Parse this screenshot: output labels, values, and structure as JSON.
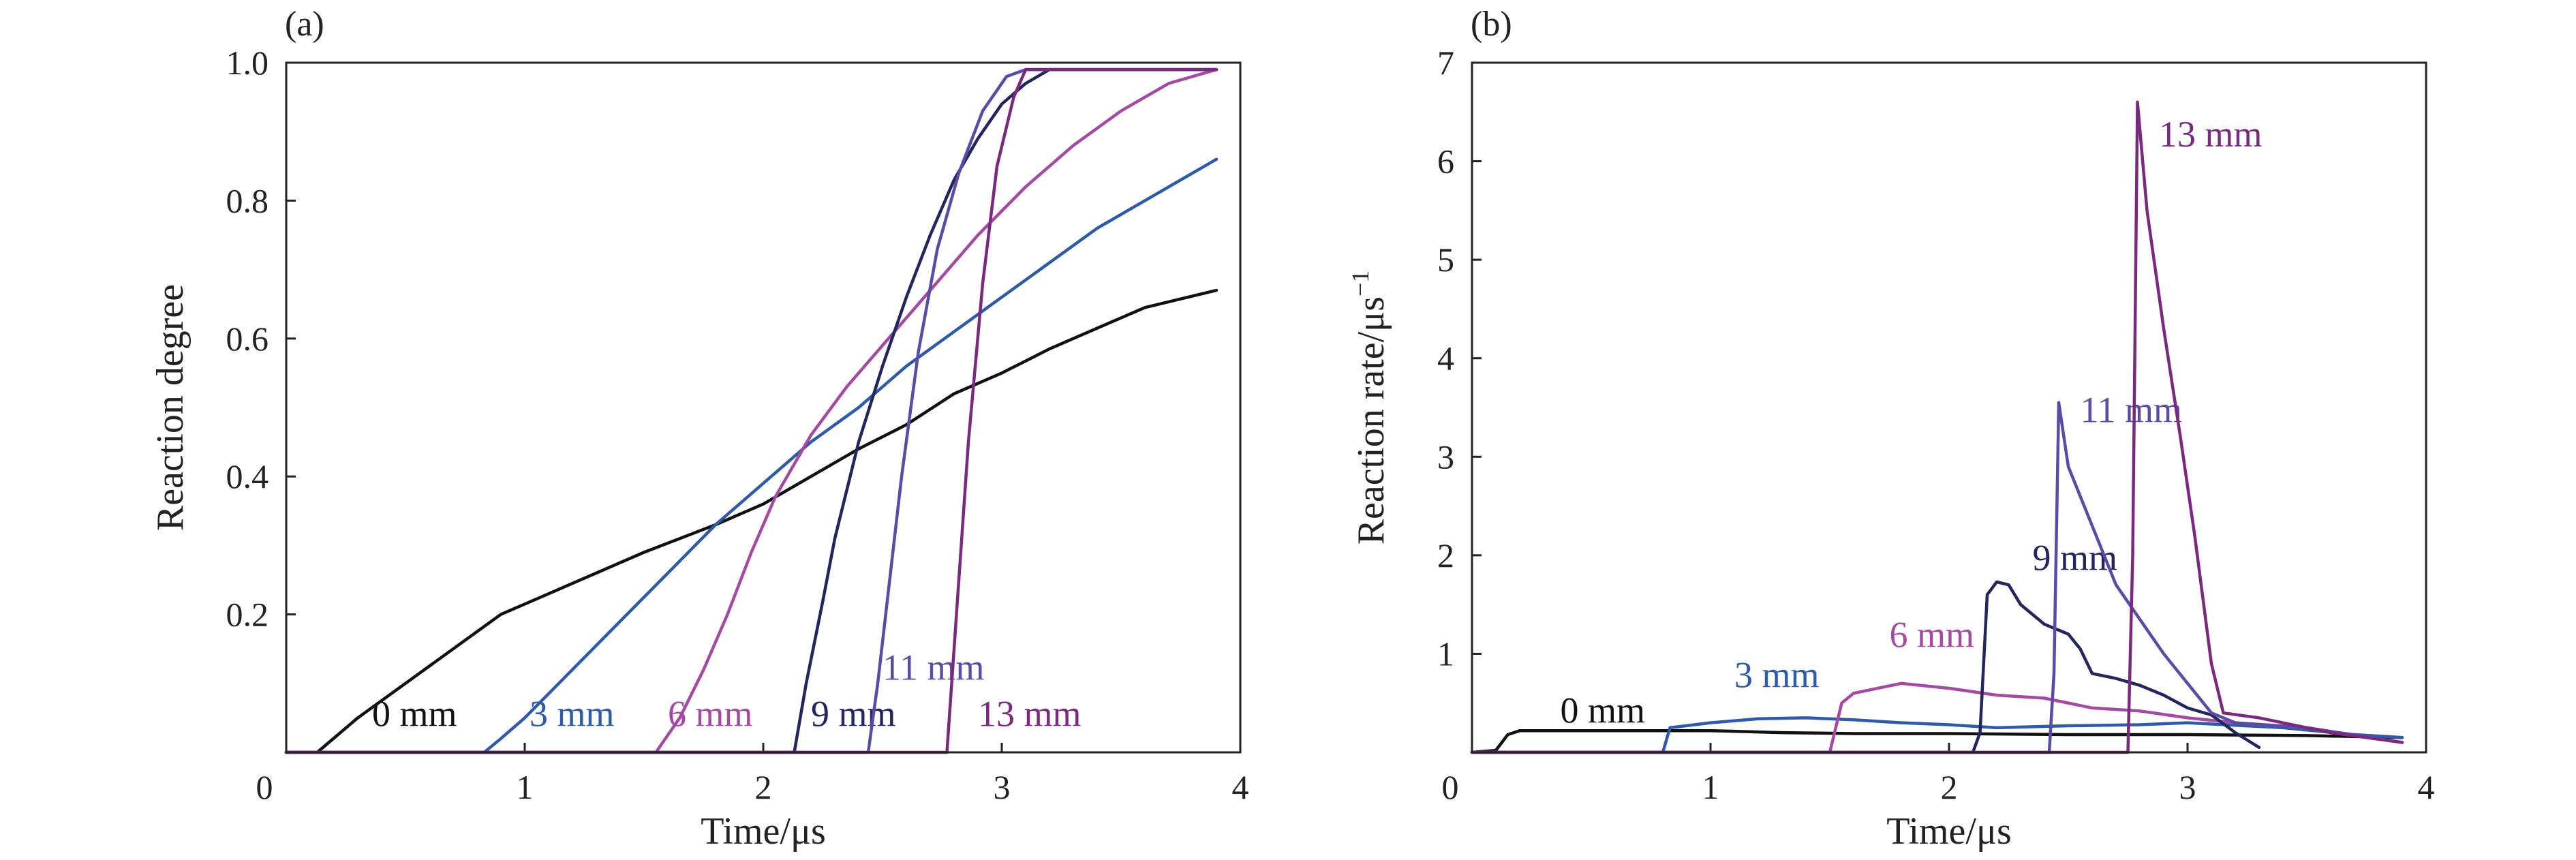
{
  "chart_data": [
    {
      "type": "line",
      "panel_label": "(a)",
      "xlabel": "Time/μs",
      "ylabel": "Reaction degree",
      "xlim": [
        0,
        4
      ],
      "ylim": [
        0,
        1.0
      ],
      "x_ticks": [
        0,
        1,
        2,
        3,
        4
      ],
      "x_tick_labels": [
        "0",
        "1",
        "2",
        "3",
        "4"
      ],
      "y_ticks": [
        0.2,
        0.4,
        0.6,
        0.8,
        1.0
      ],
      "y_tick_labels": [
        "0.2",
        "0.4",
        "0.6",
        "0.8",
        "1.0"
      ],
      "grid": false,
      "legend": "none",
      "series": [
        {
          "name": "0 mm",
          "color": "#111111",
          "label_at": [
            0.36,
            0.038
          ],
          "points": [
            [
              0,
              0
            ],
            [
              0.08,
              0
            ],
            [
              0.13,
              0
            ],
            [
              0.3,
              0.05
            ],
            [
              0.5,
              0.1
            ],
            [
              0.7,
              0.15
            ],
            [
              0.9,
              0.2
            ],
            [
              1.2,
              0.245
            ],
            [
              1.5,
              0.29
            ],
            [
              1.8,
              0.33
            ],
            [
              2.0,
              0.36
            ],
            [
              2.2,
              0.4
            ],
            [
              2.4,
              0.44
            ],
            [
              2.6,
              0.475
            ],
            [
              2.8,
              0.52
            ],
            [
              3.0,
              0.55
            ],
            [
              3.2,
              0.585
            ],
            [
              3.4,
              0.615
            ],
            [
              3.6,
              0.645
            ],
            [
              3.9,
              0.67
            ]
          ]
        },
        {
          "name": "3 mm",
          "color": "#2e5aa8",
          "label_at": [
            1.02,
            0.038
          ],
          "points": [
            [
              0,
              0
            ],
            [
              0.8,
              0
            ],
            [
              0.83,
              0
            ],
            [
              0.9,
              0.02
            ],
            [
              1.0,
              0.05
            ],
            [
              1.2,
              0.12
            ],
            [
              1.4,
              0.19
            ],
            [
              1.6,
              0.26
            ],
            [
              1.8,
              0.33
            ],
            [
              2.0,
              0.39
            ],
            [
              2.2,
              0.45
            ],
            [
              2.4,
              0.5
            ],
            [
              2.6,
              0.56
            ],
            [
              2.8,
              0.61
            ],
            [
              3.0,
              0.66
            ],
            [
              3.2,
              0.71
            ],
            [
              3.4,
              0.76
            ],
            [
              3.6,
              0.8
            ],
            [
              3.9,
              0.86
            ]
          ]
        },
        {
          "name": "6 mm",
          "color": "#a54aa3",
          "label_at": [
            1.6,
            0.038
          ],
          "points": [
            [
              0,
              0
            ],
            [
              1.5,
              0
            ],
            [
              1.55,
              0
            ],
            [
              1.65,
              0.05
            ],
            [
              1.75,
              0.12
            ],
            [
              1.85,
              0.2
            ],
            [
              1.95,
              0.29
            ],
            [
              2.05,
              0.37
            ],
            [
              2.2,
              0.46
            ],
            [
              2.35,
              0.53
            ],
            [
              2.5,
              0.59
            ],
            [
              2.7,
              0.67
            ],
            [
              2.9,
              0.75
            ],
            [
              3.1,
              0.82
            ],
            [
              3.3,
              0.88
            ],
            [
              3.5,
              0.93
            ],
            [
              3.7,
              0.97
            ],
            [
              3.9,
              0.99
            ]
          ]
        },
        {
          "name": "9 mm",
          "color": "#22255e",
          "label_at": [
            2.2,
            0.038
          ],
          "points": [
            [
              0,
              0
            ],
            [
              2.1,
              0
            ],
            [
              2.13,
              0
            ],
            [
              2.18,
              0.1
            ],
            [
              2.25,
              0.22
            ],
            [
              2.3,
              0.31
            ],
            [
              2.4,
              0.45
            ],
            [
              2.5,
              0.56
            ],
            [
              2.6,
              0.66
            ],
            [
              2.7,
              0.75
            ],
            [
              2.8,
              0.83
            ],
            [
              2.9,
              0.89
            ],
            [
              3.0,
              0.94
            ],
            [
              3.1,
              0.97
            ],
            [
              3.2,
              0.99
            ],
            [
              3.3,
              0.99
            ],
            [
              3.9,
              0.99
            ]
          ]
        },
        {
          "name": "11 mm",
          "color": "#5a4ba6",
          "label_at": [
            2.5,
            0.105
          ],
          "points": [
            [
              0,
              0
            ],
            [
              2.42,
              0
            ],
            [
              2.44,
              0
            ],
            [
              2.48,
              0.1
            ],
            [
              2.52,
              0.22
            ],
            [
              2.58,
              0.4
            ],
            [
              2.65,
              0.58
            ],
            [
              2.73,
              0.73
            ],
            [
              2.82,
              0.84
            ],
            [
              2.92,
              0.93
            ],
            [
              3.02,
              0.98
            ],
            [
              3.1,
              0.99
            ],
            [
              3.9,
              0.99
            ]
          ]
        },
        {
          "name": "13 mm",
          "color": "#7a2a7e",
          "label_at": [
            2.9,
            0.038
          ],
          "points": [
            [
              0,
              0
            ],
            [
              2.75,
              0
            ],
            [
              2.77,
              0
            ],
            [
              2.81,
              0.2
            ],
            [
              2.86,
              0.45
            ],
            [
              2.92,
              0.68
            ],
            [
              2.98,
              0.85
            ],
            [
              3.05,
              0.95
            ],
            [
              3.1,
              0.99
            ],
            [
              3.9,
              0.99
            ]
          ]
        }
      ]
    },
    {
      "type": "line",
      "panel_label": "(b)",
      "xlabel": "Time/μs",
      "ylabel": "Reaction rate/μs",
      "ylabel_superscript": "−1",
      "xlim": [
        0,
        4
      ],
      "ylim": [
        0,
        7
      ],
      "x_ticks": [
        0,
        1,
        2,
        3,
        4
      ],
      "x_tick_labels": [
        "0",
        "1",
        "2",
        "3",
        "4"
      ],
      "y_ticks": [
        1,
        2,
        3,
        4,
        5,
        6,
        7
      ],
      "y_tick_labels": [
        "1",
        "2",
        "3",
        "4",
        "5",
        "6",
        "7"
      ],
      "grid": false,
      "legend": "none",
      "series": [
        {
          "name": "0 mm",
          "color": "#111111",
          "label_at": [
            0.37,
            0.3
          ],
          "points": [
            [
              0,
              0
            ],
            [
              0.1,
              0.02
            ],
            [
              0.15,
              0.18
            ],
            [
              0.2,
              0.22
            ],
            [
              0.5,
              0.22
            ],
            [
              1.0,
              0.22
            ],
            [
              1.3,
              0.2
            ],
            [
              1.6,
              0.19
            ],
            [
              2.0,
              0.19
            ],
            [
              2.5,
              0.18
            ],
            [
              3.0,
              0.18
            ],
            [
              3.5,
              0.17
            ],
            [
              3.9,
              0.15
            ]
          ]
        },
        {
          "name": "3 mm",
          "color": "#2e5aa8",
          "label_at": [
            1.1,
            0.66
          ],
          "points": [
            [
              0,
              0
            ],
            [
              0.8,
              0
            ],
            [
              0.83,
              0.25
            ],
            [
              1.0,
              0.3
            ],
            [
              1.2,
              0.34
            ],
            [
              1.4,
              0.35
            ],
            [
              1.6,
              0.33
            ],
            [
              1.8,
              0.3
            ],
            [
              2.0,
              0.28
            ],
            [
              2.2,
              0.25
            ],
            [
              2.5,
              0.27
            ],
            [
              2.8,
              0.28
            ],
            [
              3.0,
              0.3
            ],
            [
              3.4,
              0.25
            ],
            [
              3.7,
              0.18
            ],
            [
              3.9,
              0.15
            ]
          ]
        },
        {
          "name": "6 mm",
          "color": "#a54aa3",
          "label_at": [
            1.75,
            1.07
          ],
          "points": [
            [
              0,
              0
            ],
            [
              1.5,
              0
            ],
            [
              1.55,
              0.5
            ],
            [
              1.6,
              0.6
            ],
            [
              1.8,
              0.7
            ],
            [
              2.0,
              0.65
            ],
            [
              2.2,
              0.58
            ],
            [
              2.4,
              0.55
            ],
            [
              2.6,
              0.45
            ],
            [
              2.8,
              0.42
            ],
            [
              3.0,
              0.35
            ],
            [
              3.2,
              0.3
            ],
            [
              3.5,
              0.25
            ],
            [
              3.9,
              0.1
            ]
          ]
        },
        {
          "name": "9 mm",
          "color": "#22255e",
          "label_at": [
            2.35,
            1.85
          ],
          "points": [
            [
              0,
              0
            ],
            [
              2.1,
              0
            ],
            [
              2.13,
              0.2
            ],
            [
              2.16,
              1.6
            ],
            [
              2.2,
              1.73
            ],
            [
              2.25,
              1.7
            ],
            [
              2.3,
              1.5
            ],
            [
              2.4,
              1.3
            ],
            [
              2.5,
              1.2
            ],
            [
              2.55,
              1.05
            ],
            [
              2.6,
              0.8
            ],
            [
              2.7,
              0.75
            ],
            [
              2.8,
              0.68
            ],
            [
              2.9,
              0.58
            ],
            [
              3.0,
              0.45
            ],
            [
              3.1,
              0.38
            ],
            [
              3.2,
              0.2
            ],
            [
              3.3,
              0.05
            ]
          ]
        },
        {
          "name": "11 mm",
          "color": "#5a4ba6",
          "label_at": [
            2.55,
            3.35
          ],
          "points": [
            [
              0,
              0
            ],
            [
              2.42,
              0
            ],
            [
              2.44,
              0.8
            ],
            [
              2.46,
              3.55
            ],
            [
              2.5,
              2.9
            ],
            [
              2.6,
              2.3
            ],
            [
              2.7,
              1.7
            ],
            [
              2.8,
              1.35
            ],
            [
              2.9,
              1.0
            ],
            [
              3.0,
              0.7
            ],
            [
              3.1,
              0.4
            ],
            [
              3.2,
              0.3
            ],
            [
              3.5,
              0.25
            ],
            [
              3.9,
              0.1
            ]
          ]
        },
        {
          "name": "13 mm",
          "color": "#7a2a7e",
          "label_at": [
            2.88,
            6.15
          ],
          "points": [
            [
              0,
              0
            ],
            [
              2.75,
              0
            ],
            [
              2.77,
              2.0
            ],
            [
              2.79,
              6.6
            ],
            [
              2.83,
              5.5
            ],
            [
              2.9,
              4.3
            ],
            [
              2.97,
              3.2
            ],
            [
              3.03,
              2.2
            ],
            [
              3.1,
              0.9
            ],
            [
              3.15,
              0.4
            ],
            [
              3.3,
              0.35
            ],
            [
              3.6,
              0.2
            ],
            [
              3.9,
              0.1
            ]
          ]
        }
      ]
    }
  ]
}
